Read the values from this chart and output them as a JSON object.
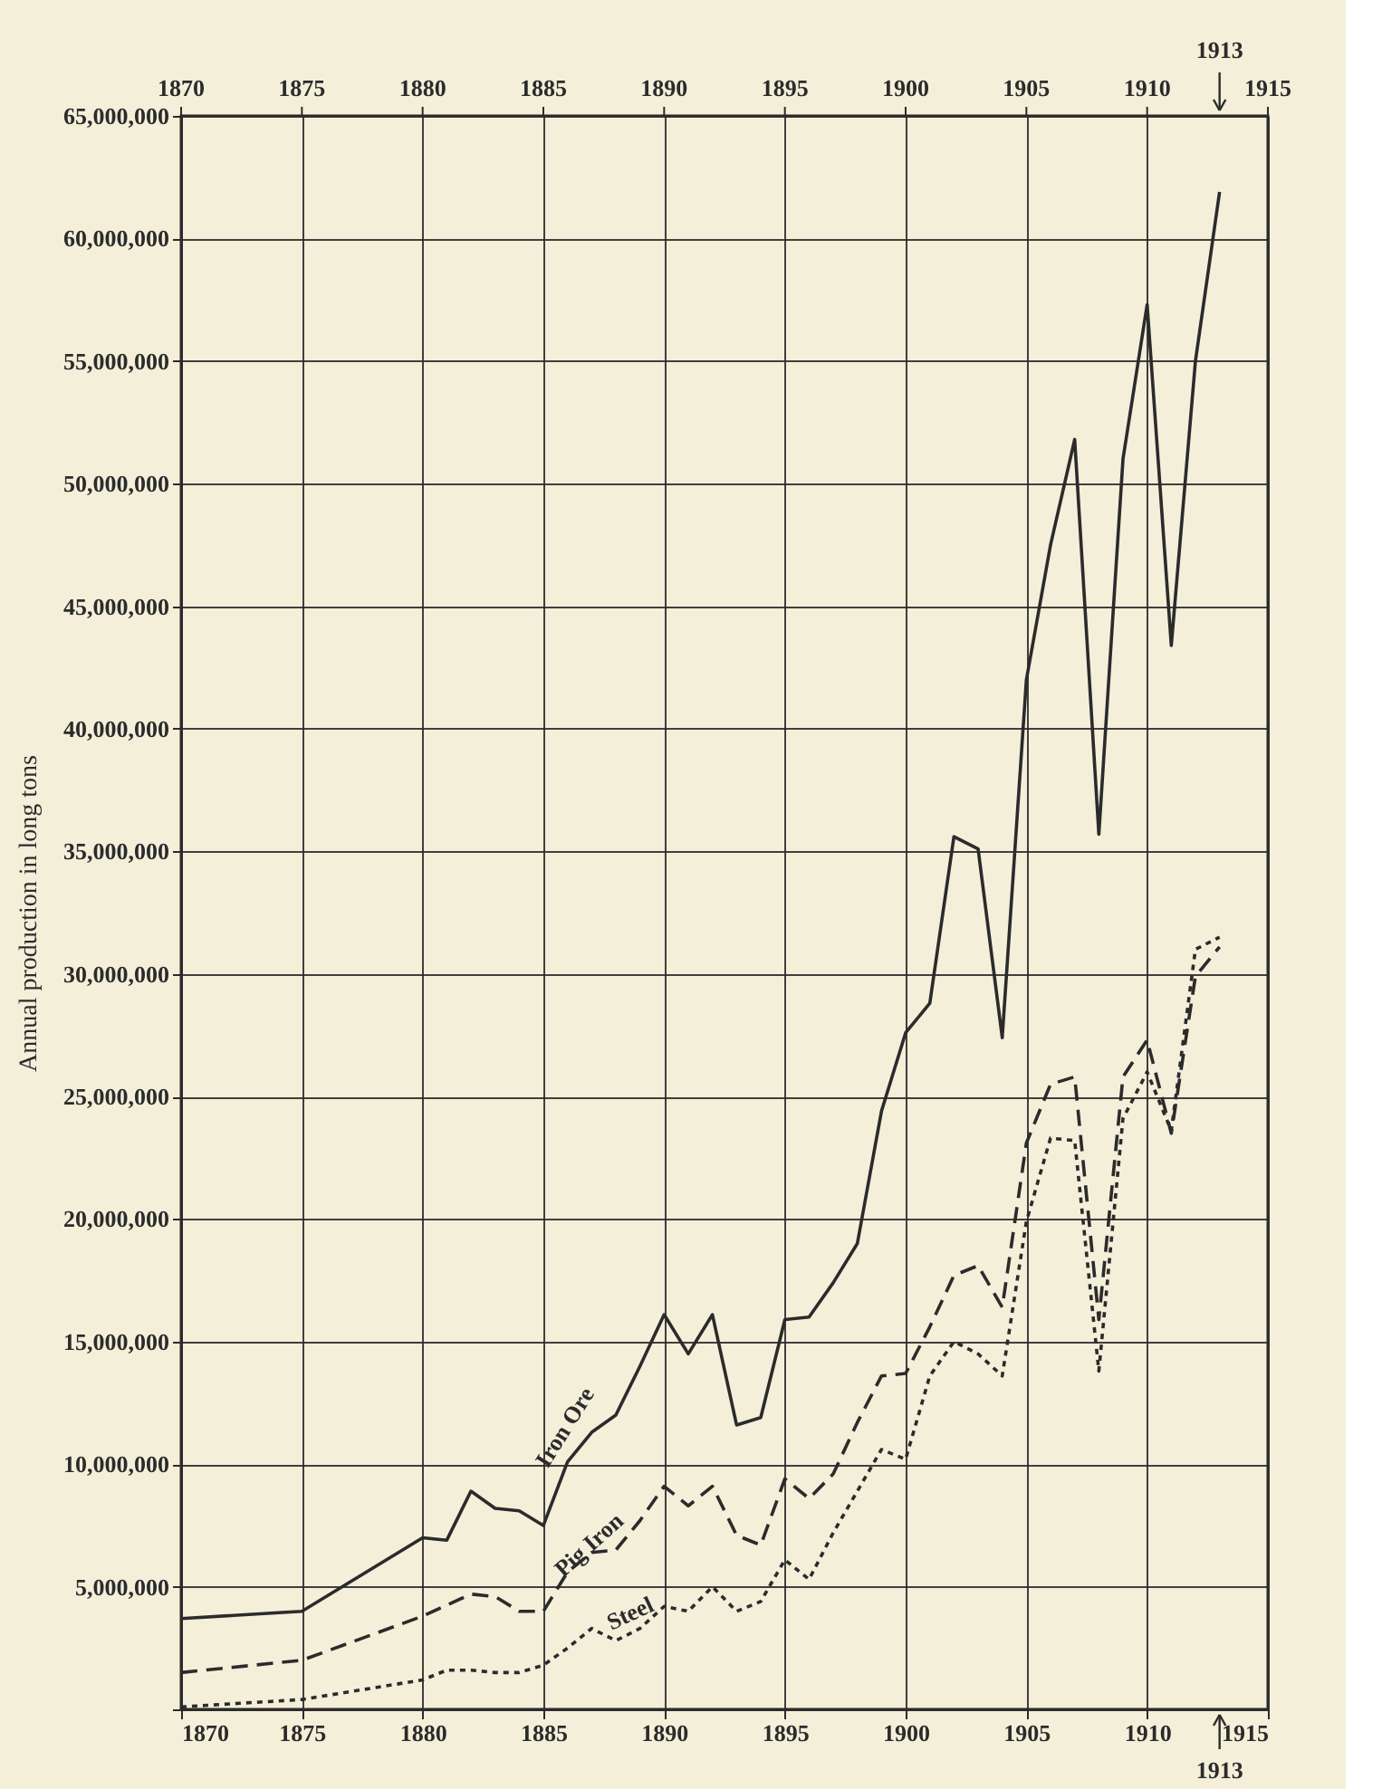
{
  "chart_data": {
    "type": "line",
    "ylabel": "Annual production in long tons",
    "xlim": [
      1870,
      1915
    ],
    "xticks": [
      1870,
      1875,
      1880,
      1885,
      1890,
      1895,
      1900,
      1905,
      1910,
      1915
    ],
    "x2lim": [
      1870,
      1915
    ],
    "x2ticks": [
      1870,
      1875,
      1880,
      1885,
      1890,
      1895,
      1900,
      1905,
      1910,
      1915
    ],
    "ylim": [
      0,
      65000000
    ],
    "yticks": [
      {
        "value": 0,
        "label": null
      },
      {
        "value": 5000000,
        "label": "5,000,000"
      },
      {
        "value": 10000000,
        "label": "10,000,000"
      },
      {
        "value": 15000000,
        "label": "15,000,000"
      },
      {
        "value": 20000000,
        "label": "20,000,000"
      },
      {
        "value": 25000000,
        "label": "25,000,000"
      },
      {
        "value": 30000000,
        "label": "30,000,000"
      },
      {
        "value": 35000000,
        "label": "35,000,000"
      },
      {
        "value": 40000000,
        "label": "40,000,000"
      },
      {
        "value": 45000000,
        "label": "45,000,000"
      },
      {
        "value": 50000000,
        "label": "50,000,000"
      },
      {
        "value": 55000000,
        "label": "55,000,000"
      },
      {
        "value": 60000000,
        "label": "60,000,000"
      },
      {
        "value": 65000000,
        "label": "65,000,000"
      }
    ],
    "grid": true,
    "legend": false,
    "marker": "none",
    "series": [
      {
        "name": "Iron Ore",
        "color": "#2b2b2b",
        "line_style": "solid",
        "x": [
          1870,
          1875,
          1880,
          1881,
          1882,
          1883,
          1884,
          1885,
          1886,
          1887,
          1888,
          1889,
          1890,
          1891,
          1892,
          1893,
          1894,
          1895,
          1896,
          1897,
          1898,
          1899,
          1900,
          1901,
          1902,
          1903,
          1904,
          1905,
          1906,
          1907,
          1908,
          1909,
          1910,
          1911,
          1912,
          1913
        ],
        "values": [
          3700000,
          4000000,
          7000000,
          6900000,
          8900000,
          8200000,
          8100000,
          7500000,
          10100000,
          11300000,
          12000000,
          14000000,
          16100000,
          14500000,
          16100000,
          11600000,
          11900000,
          15900000,
          16000000,
          17400000,
          19000000,
          24400000,
          27600000,
          28800000,
          35600000,
          35100000,
          27400000,
          42000000,
          47500000,
          51800000,
          35700000,
          51000000,
          57300000,
          43400000,
          55000000,
          61900000
        ]
      },
      {
        "name": "Pig Iron",
        "color": "#2b2b2b",
        "line_style": "dashed",
        "x": [
          1870,
          1875,
          1880,
          1882,
          1883,
          1884,
          1885,
          1886,
          1887,
          1888,
          1889,
          1890,
          1891,
          1892,
          1893,
          1894,
          1895,
          1896,
          1897,
          1898,
          1899,
          1900,
          1901,
          1902,
          1903,
          1904,
          1905,
          1906,
          1907,
          1908,
          1909,
          1910,
          1911,
          1912,
          1913
        ],
        "values": [
          1500000,
          2000000,
          3800000,
          4700000,
          4600000,
          4000000,
          4000000,
          5600000,
          6400000,
          6500000,
          7700000,
          9100000,
          8300000,
          9100000,
          7100000,
          6700000,
          9400000,
          8600000,
          9600000,
          11700000,
          13600000,
          13700000,
          15600000,
          17700000,
          18100000,
          16400000,
          23100000,
          25500000,
          25800000,
          15900000,
          25800000,
          27300000,
          23500000,
          29900000,
          31100000
        ]
      },
      {
        "name": "Steel",
        "color": "#2b2b2b",
        "line_style": "dotted",
        "x": [
          1870,
          1875,
          1880,
          1881,
          1882,
          1883,
          1884,
          1885,
          1886,
          1887,
          1888,
          1889,
          1890,
          1891,
          1892,
          1893,
          1894,
          1895,
          1896,
          1897,
          1898,
          1899,
          1900,
          1901,
          1902,
          1903,
          1904,
          1905,
          1906,
          1907,
          1908,
          1909,
          1910,
          1911,
          1912,
          1913
        ],
        "values": [
          100000,
          400000,
          1200000,
          1600000,
          1600000,
          1500000,
          1500000,
          1800000,
          2500000,
          3300000,
          2800000,
          3300000,
          4200000,
          4000000,
          5000000,
          4000000,
          4400000,
          6100000,
          5300000,
          7200000,
          8900000,
          10600000,
          10200000,
          13600000,
          15000000,
          14500000,
          13600000,
          19900000,
          23300000,
          23200000,
          13800000,
          24100000,
          26000000,
          23600000,
          31000000,
          31500000
        ]
      }
    ],
    "annotations": [
      {
        "text": "1913",
        "x": 1913
      },
      {
        "text": "1913",
        "x": 1913
      }
    ]
  }
}
